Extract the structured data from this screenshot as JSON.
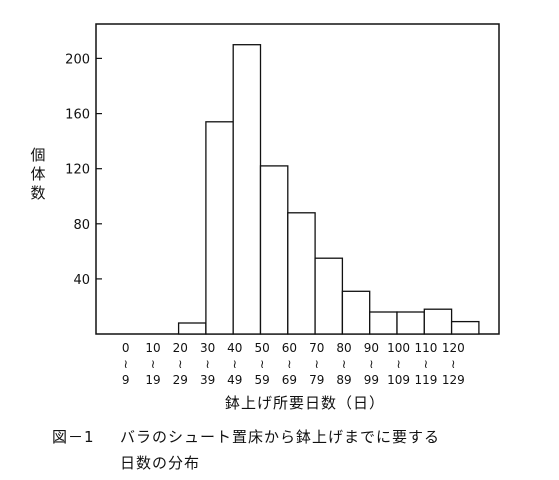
{
  "chart_data": {
    "type": "bar",
    "title": "",
    "xlabel": "鉢上げ所要日数（日）",
    "ylabel": "個体数",
    "ylim": [
      0,
      225
    ],
    "yticks": [
      40,
      80,
      120,
      160,
      200
    ],
    "grid": false,
    "categories": [
      {
        "lo": "0",
        "hi": "9"
      },
      {
        "lo": "10",
        "hi": "19"
      },
      {
        "lo": "20",
        "hi": "29"
      },
      {
        "lo": "30",
        "hi": "39"
      },
      {
        "lo": "40",
        "hi": "49"
      },
      {
        "lo": "50",
        "hi": "59"
      },
      {
        "lo": "60",
        "hi": "69"
      },
      {
        "lo": "70",
        "hi": "79"
      },
      {
        "lo": "80",
        "hi": "89"
      },
      {
        "lo": "90",
        "hi": "99"
      },
      {
        "lo": "100",
        "hi": "109"
      },
      {
        "lo": "110",
        "hi": "119"
      },
      {
        "lo": "120",
        "hi": "129"
      }
    ],
    "values": [
      0,
      0,
      8,
      154,
      210,
      122,
      88,
      55,
      31,
      16,
      16,
      18,
      9
    ]
  },
  "caption": {
    "number": "図－1",
    "line1": "バラのシュート置床から鉢上げまでに要する",
    "line2": "日数の分布"
  }
}
